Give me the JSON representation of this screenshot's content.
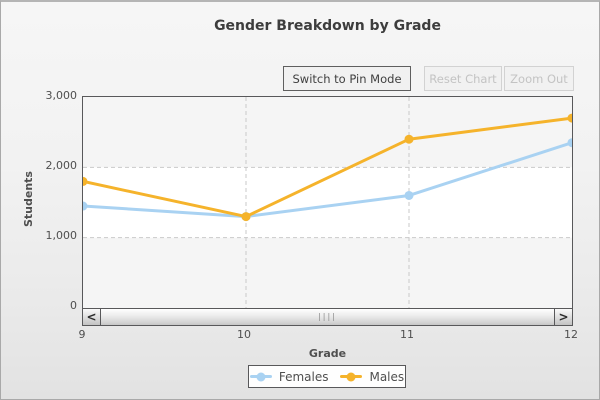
{
  "title": "Gender Breakdown by Grade",
  "toolbar": {
    "pin_mode_label": "Switch to Pin Mode",
    "reset_label": "Reset Chart",
    "zoom_out_label": "Zoom Out"
  },
  "scrollbar": {
    "left_arrow_icon": "<",
    "right_arrow_icon": ">",
    "grip_icon": "||||"
  },
  "colors": {
    "females": "#A9D2F2",
    "males": "#F5B32B",
    "plot_border": "#58585A",
    "grid": "#C9C9C9",
    "band_gray": "#F5F5F5",
    "band_white": "#FFFFFF",
    "title_text": "#3D3D3D",
    "axis_text": "#4F4F4F"
  },
  "chart_data": {
    "type": "line",
    "title": "Gender Breakdown by Grade",
    "xlabel": "Grade",
    "ylabel": "Students",
    "categories": [
      "9",
      "10",
      "11",
      "12"
    ],
    "series": [
      {
        "name": "Females",
        "color": "#A9D2F2",
        "values": [
          1450,
          1300,
          1600,
          2350
        ]
      },
      {
        "name": "Males",
        "color": "#F5B32B",
        "values": [
          1800,
          1300,
          2400,
          2700
        ]
      }
    ],
    "ylim": [
      0,
      3000
    ],
    "yticks": [
      0,
      1000,
      2000,
      3000
    ],
    "ytick_labels": [
      "0",
      "1,000",
      "2,000",
      "3,000"
    ],
    "grid": "dashed",
    "legend_position": "bottom"
  }
}
